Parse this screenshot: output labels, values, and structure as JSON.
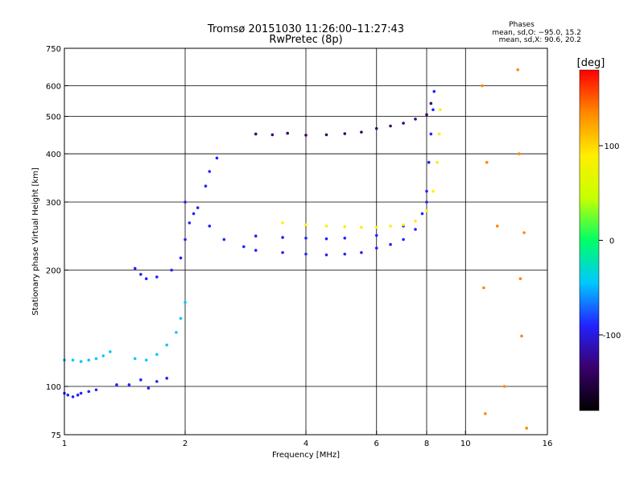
{
  "chart_data": {
    "type": "scatter",
    "title": "Tromsø 20151030 11:26:00–11:27:43",
    "subtitle": "RwPretec (8p)",
    "xlabel": "Frequency [MHz]",
    "ylabel": "Stationary phase Virtual Height [km]",
    "x_scale": "log2",
    "y_scale": "log",
    "xlim": [
      1,
      16
    ],
    "ylim": [
      75,
      750
    ],
    "x_ticks": [
      1,
      2,
      4,
      6,
      8,
      10,
      16
    ],
    "x_gridlines": [
      2,
      4,
      6,
      8,
      10
    ],
    "y_ticks": [
      75,
      100,
      200,
      300,
      400,
      500,
      600,
      750
    ],
    "y_gridlines": [
      100,
      200,
      300,
      400,
      500,
      600
    ],
    "grid": true,
    "info_header": "Phases",
    "info_lines": [
      "mean, sd,O: −95.0, 15.2",
      "mean, sd,X:  90.6, 20.2"
    ],
    "colorbar": {
      "label": "[deg]",
      "range": [
        -180,
        180
      ],
      "ticks": [
        100,
        0,
        -100
      ],
      "colors": [
        "#000000",
        "#3a006b",
        "#2222ff",
        "#00c8ff",
        "#00ff66",
        "#c8ff00",
        "#ffee00",
        "#ff8800",
        "#ff0000"
      ]
    },
    "series": [
      {
        "trace": "E",
        "phase": -110,
        "points": [
          [
            1.0,
            96
          ],
          [
            1.02,
            95
          ],
          [
            1.05,
            94
          ],
          [
            1.08,
            95
          ],
          [
            1.1,
            96
          ],
          [
            1.15,
            97
          ],
          [
            1.2,
            98
          ],
          [
            1.35,
            101
          ],
          [
            1.45,
            101
          ],
          [
            1.55,
            104
          ],
          [
            1.62,
            99
          ],
          [
            1.7,
            103
          ],
          [
            1.8,
            105
          ]
        ]
      },
      {
        "trace": "E2",
        "phase": -30,
        "points": [
          [
            1.0,
            117
          ],
          [
            1.05,
            117
          ],
          [
            1.1,
            116
          ],
          [
            1.15,
            117
          ],
          [
            1.2,
            118
          ],
          [
            1.25,
            120
          ],
          [
            1.3,
            123
          ],
          [
            1.5,
            118
          ],
          [
            1.6,
            117
          ],
          [
            1.7,
            121
          ],
          [
            1.8,
            128
          ],
          [
            1.9,
            138
          ],
          [
            1.95,
            150
          ],
          [
            2.0,
            165
          ]
        ]
      },
      {
        "trace": "F1",
        "phase": -110,
        "points": [
          [
            1.5,
            202
          ],
          [
            1.55,
            195
          ],
          [
            1.6,
            190
          ],
          [
            1.7,
            192
          ],
          [
            1.85,
            200
          ],
          [
            1.95,
            215
          ],
          [
            2.0,
            240
          ],
          [
            2.05,
            265
          ],
          [
            2.15,
            290
          ],
          [
            2.25,
            330
          ],
          [
            2.3,
            360
          ],
          [
            2.4,
            390
          ]
        ]
      },
      {
        "trace": "F2-O",
        "phase": -95,
        "points": [
          [
            2.0,
            300
          ],
          [
            2.1,
            280
          ],
          [
            2.3,
            260
          ],
          [
            2.5,
            240
          ],
          [
            2.8,
            230
          ],
          [
            3.0,
            225
          ],
          [
            3.5,
            222
          ],
          [
            4.0,
            220
          ],
          [
            4.5,
            219
          ],
          [
            5.0,
            220
          ],
          [
            5.5,
            222
          ],
          [
            6.0,
            228
          ],
          [
            6.5,
            233
          ],
          [
            7.0,
            240
          ],
          [
            7.5,
            255
          ],
          [
            7.8,
            280
          ],
          [
            8.0,
            320
          ],
          [
            8.1,
            380
          ],
          [
            8.2,
            450
          ],
          [
            8.3,
            520
          ],
          [
            8.35,
            580
          ]
        ]
      },
      {
        "trace": "F2-O-upper",
        "phase": -95,
        "points": [
          [
            3.0,
            245
          ],
          [
            3.5,
            243
          ],
          [
            4.0,
            242
          ],
          [
            4.5,
            241
          ],
          [
            5.0,
            242
          ],
          [
            6.0,
            246
          ],
          [
            7.0,
            260
          ],
          [
            8.0,
            300
          ]
        ]
      },
      {
        "trace": "F2-X",
        "phase": 90,
        "points": [
          [
            3.5,
            265
          ],
          [
            4.0,
            262
          ],
          [
            4.5,
            260
          ],
          [
            5.0,
            259
          ],
          [
            5.5,
            258
          ],
          [
            6.0,
            258
          ],
          [
            6.5,
            260
          ],
          [
            7.0,
            262
          ],
          [
            7.5,
            268
          ],
          [
            8.0,
            285
          ],
          [
            8.3,
            320
          ],
          [
            8.5,
            380
          ],
          [
            8.6,
            450
          ],
          [
            8.65,
            520
          ]
        ]
      },
      {
        "trace": "F3",
        "phase": -115,
        "points": [
          [
            3.0,
            450
          ],
          [
            3.3,
            448
          ],
          [
            3.6,
            452
          ],
          [
            4.0,
            447
          ],
          [
            4.5,
            448
          ],
          [
            5.0,
            451
          ],
          [
            5.5,
            455
          ],
          [
            6.0,
            465
          ],
          [
            6.5,
            472
          ],
          [
            7.0,
            480
          ],
          [
            7.5,
            492
          ],
          [
            8.0,
            505
          ],
          [
            8.2,
            540
          ]
        ]
      },
      {
        "trace": "sporadic",
        "phase": 120,
        "points": [
          [
            11.0,
            600
          ],
          [
            11.1,
            180
          ],
          [
            11.3,
            380
          ],
          [
            12.0,
            260
          ],
          [
            13.5,
            660
          ],
          [
            13.6,
            400
          ],
          [
            14.0,
            250
          ],
          [
            13.7,
            190
          ],
          [
            13.8,
            135
          ],
          [
            12.5,
            100
          ],
          [
            11.2,
            85
          ],
          [
            14.2,
            78
          ]
        ]
      }
    ]
  }
}
